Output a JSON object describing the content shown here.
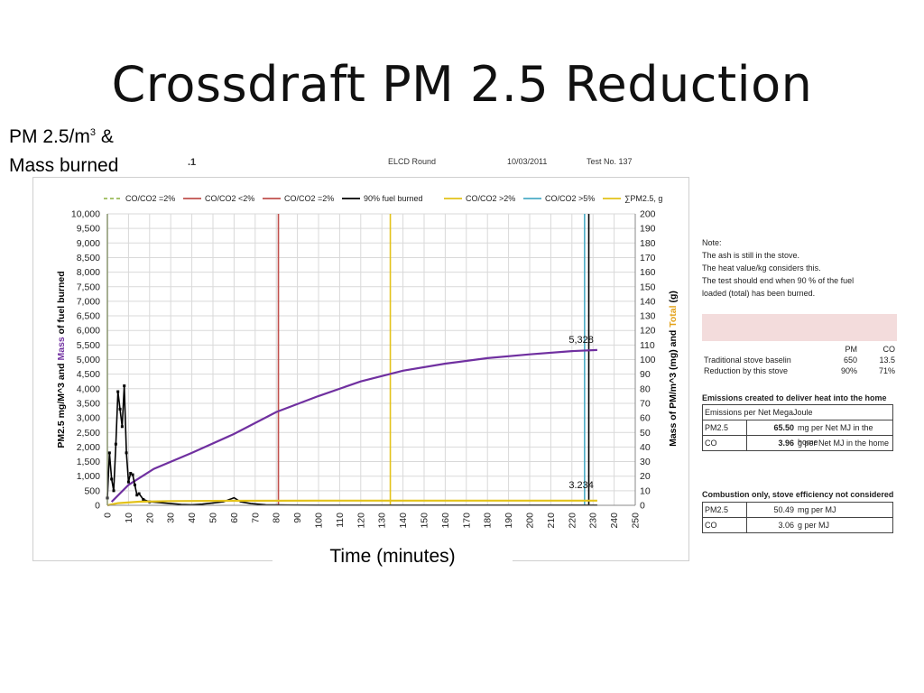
{
  "slide": {
    "title": "Crossdraft PM 2.5 Reduction",
    "left_label_line1": "PM 2.5/m",
    "left_label_sup": "3",
    "left_label_amp": " &",
    "left_label_line2": "Mass burned",
    "x_axis_label": "Time (minutes)"
  },
  "chart_header": {
    "fragment": ".1",
    "name": "ELCD Round",
    "date": "10/03/2011",
    "test": "Test No.  137"
  },
  "chart_data": {
    "type": "line",
    "xlabel": "Time (minutes)",
    "ylabel_left_parts": [
      "PM2.5 mg/M^3  and  ",
      "Mass",
      " of fuel burned"
    ],
    "ylabel_right_parts": [
      "Mass of PM/m^3 (mg)  and  ",
      "Total",
      " (g)"
    ],
    "xlim": [
      0,
      250
    ],
    "ylim_left": [
      0,
      10000
    ],
    "ylim_right": [
      0,
      200
    ],
    "x_ticks": [
      0,
      10,
      20,
      30,
      40,
      50,
      60,
      70,
      80,
      90,
      100,
      110,
      120,
      130,
      140,
      150,
      160,
      170,
      180,
      190,
      200,
      210,
      220,
      230,
      240,
      250
    ],
    "y_left_ticks": [
      "0",
      "500",
      "1,000",
      "1,500",
      "2,000",
      "2,500",
      "3,000",
      "3,500",
      "4,000",
      "4,500",
      "5,000",
      "5,500",
      "6,000",
      "6,500",
      "7,000",
      "7,500",
      "8,000",
      "8,500",
      "9,000",
      "9,500",
      "10,000"
    ],
    "y_right_ticks": [
      "0",
      "10",
      "20",
      "30",
      "40",
      "50",
      "60",
      "70",
      "80",
      "90",
      "100",
      "110",
      "120",
      "130",
      "140",
      "150",
      "160",
      "170",
      "180",
      "190",
      "200"
    ],
    "grid": true,
    "legend_position": "top",
    "legend": [
      {
        "label": "CO/CO2 =2%",
        "color": "#9bbb59",
        "dash": true
      },
      {
        "label": "CO/CO2 <2%",
        "color": "#c0504d",
        "dash": false
      },
      {
        "label": "CO/CO2 =2%",
        "color": "#c0504d",
        "dash": false
      },
      {
        "label": "90% fuel burned",
        "color": "#000000",
        "dash": false
      },
      {
        "label": "CO/CO2 >2%",
        "color": "#e3c21a",
        "dash": false
      },
      {
        "label": "CO/CO2 >5%",
        "color": "#4bacc6",
        "dash": false
      },
      {
        "label": "∑PM2.5, g",
        "color": "#e3c21a",
        "dash": false
      }
    ],
    "vertical_markers": [
      {
        "x": 0,
        "color": "#9bbb59"
      },
      {
        "x": 81,
        "color": "#c0504d"
      },
      {
        "x": 134,
        "color": "#e3c21a"
      },
      {
        "x": 226,
        "color": "#4bacc6"
      },
      {
        "x": 228,
        "color": "#000000"
      }
    ],
    "series": [
      {
        "name": "Mass",
        "axis": "left",
        "color": "#7030a0",
        "x": [
          2,
          10,
          22,
          40,
          60,
          80,
          100,
          120,
          140,
          160,
          180,
          200,
          220,
          232
        ],
        "y": [
          120,
          700,
          1250,
          1800,
          2450,
          3200,
          3750,
          4250,
          4620,
          4860,
          5050,
          5180,
          5290,
          5328
        ]
      },
      {
        "name": "PM2.5",
        "axis": "left",
        "color": "#000000",
        "x": [
          0,
          1,
          2,
          3,
          4,
          5,
          6,
          7,
          8,
          9,
          10,
          11,
          12,
          13,
          14,
          15,
          17,
          20,
          25,
          30,
          35,
          40,
          45,
          50,
          55,
          60,
          63,
          68,
          75,
          85,
          100,
          150,
          200,
          232
        ],
        "y": [
          250,
          1800,
          900,
          500,
          2100,
          3900,
          3300,
          2700,
          4100,
          1800,
          800,
          1100,
          1050,
          700,
          350,
          400,
          200,
          120,
          90,
          60,
          30,
          20,
          40,
          80,
          120,
          260,
          120,
          60,
          20,
          10,
          5,
          5,
          5,
          5
        ]
      },
      {
        "name": "∑PM2.5, g",
        "axis": "right",
        "color": "#e3c21a",
        "x": [
          0,
          5,
          15,
          30,
          60,
          100,
          150,
          200,
          232
        ],
        "y": [
          0,
          1.5,
          2.5,
          2.9,
          3.1,
          3.2,
          3.22,
          3.23,
          3.234
        ]
      }
    ],
    "annotations": [
      {
        "text": "5,328",
        "x": 232,
        "y": 5328,
        "axis": "left"
      },
      {
        "text": "3.234",
        "x": 232,
        "y": 3.234,
        "axis": "right"
      }
    ]
  },
  "notes": {
    "title": "Note:",
    "line1": "The ash is still in the stove.",
    "line2": "The heat value/kg considers this.",
    "line3": "The test should end when 90 % of the fuel",
    "line4": "loaded (total) has been burned."
  },
  "comparison": {
    "col_pm": "PM",
    "col_co": "CO",
    "row1_label": "Traditional stove baselin",
    "row1_pm": "650",
    "row1_co": "13.5",
    "row2_label": "Reduction by this stove",
    "row2_pm": "90%",
    "row2_co": "71%"
  },
  "emissions_home": {
    "title": "Emissions created to deliver heat into the home",
    "subtitle": "Emissions per Net MegaJoule",
    "pm_label": "PM2.5",
    "pm_value": "65.50",
    "pm_unit": "mg per Net MJ in the home",
    "co_label": "CO",
    "co_value": "3.96",
    "co_unit": "g per Net MJ in the home"
  },
  "combustion": {
    "title": "Combustion only, stove efficiency not considered",
    "pm_label": "PM2.5",
    "pm_value": "50.49",
    "pm_unit": "mg per MJ",
    "co_label": "CO",
    "co_value": "3.06",
    "co_unit": "g per MJ"
  }
}
